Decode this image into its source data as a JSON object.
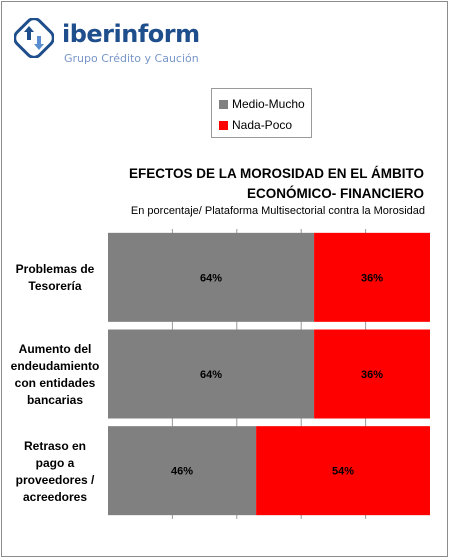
{
  "logo": {
    "brand": "iberinform",
    "tagline": "Grupo Crédito y Caución",
    "icon": "refresh-arrows-icon",
    "brand_color": "#1f4e8c",
    "tagline_color": "#7896c8"
  },
  "chart_data": {
    "type": "bar",
    "orientation": "horizontal",
    "stacked": true,
    "title_lines": [
      "EFECTOS DE LA MOROSIDAD EN EL ÁMBITO",
      "ECONÓMICO- FINANCIERO"
    ],
    "subtitle": "En porcentaje/ Plataforma  Multisectorial contra la Morosidad",
    "categories": [
      [
        "Problemas de",
        "Tesorería"
      ],
      [
        "Aumento del",
        "endeudamiento",
        "con entidades",
        "bancarias"
      ],
      [
        "Retraso en",
        "pago a",
        "proveedores /",
        "acreedores"
      ]
    ],
    "series": [
      {
        "name": "Medio-Mucho",
        "color": "#808080",
        "values": [
          64,
          64,
          46
        ],
        "labels": [
          "64%",
          "64%",
          "46%"
        ]
      },
      {
        "name": "Nada-Poco",
        "color": "#ff0000",
        "values": [
          36,
          36,
          54
        ],
        "labels": [
          "36%",
          "36%",
          "54%"
        ]
      }
    ],
    "xlim": [
      0,
      100
    ],
    "grid": true,
    "legend_position": "top-center"
  }
}
